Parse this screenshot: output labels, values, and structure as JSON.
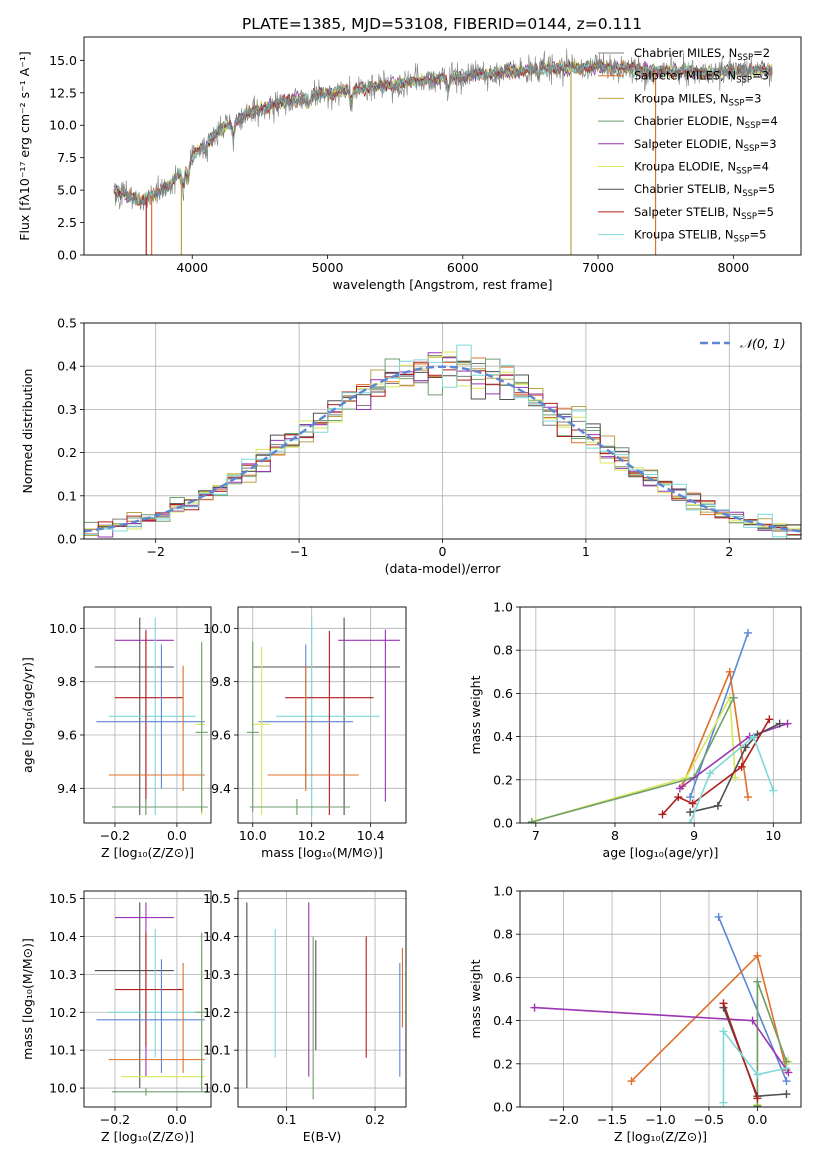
{
  "figure": {
    "title": "PLATE=1385, MJD=53108, FIBERID=0144, z=0.111"
  },
  "legend_entries": [
    {
      "label": "Chabrier MILES, N",
      "sub": "SSP",
      "suffix": "=2",
      "color": "#7f7f7f"
    },
    {
      "label": "Salpeter MILES, N",
      "sub": "SSP",
      "suffix": "=3",
      "color": "#e0702a"
    },
    {
      "label": "Kroupa MILES, N",
      "sub": "SSP",
      "suffix": "=3",
      "color": "#b8a24a"
    },
    {
      "label": "Chabrier ELODIE, N",
      "sub": "SSP",
      "suffix": "=4",
      "color": "#6f9e6f"
    },
    {
      "label": "Salpeter ELODIE, N",
      "sub": "SSP",
      "suffix": "=3",
      "color": "#9b35b4"
    },
    {
      "label": "Kroupa ELODIE, N",
      "sub": "SSP",
      "suffix": "=4",
      "color": "#d8e85a"
    },
    {
      "label": "Chabrier STELIB, N",
      "sub": "SSP",
      "suffix": "=5",
      "color": "#505050"
    },
    {
      "label": "Salpeter STELIB, N",
      "sub": "SSP",
      "suffix": "=5",
      "color": "#b01e1e"
    },
    {
      "label": "Kroupa STELIB, N",
      "sub": "SSP",
      "suffix": "=5",
      "color": "#7fd8d8"
    }
  ],
  "chart_data": [
    {
      "id": "spectrum",
      "type": "line",
      "title": "PLATE=1385, MJD=53108, FIBERID=0144, z=0.111",
      "xlabel": "wavelength [Angstrom, rest frame]",
      "ylabel": "Flux [fλ10⁻¹⁷ erg cm⁻² s⁻¹ A⁻¹]",
      "xlim": [
        3200,
        8500
      ],
      "ylim": [
        0,
        16.8
      ],
      "xticks": [
        4000,
        5000,
        6000,
        7000,
        8000
      ],
      "yticks": [
        0.0,
        2.5,
        5.0,
        7.5,
        10.0,
        12.5,
        15.0
      ],
      "grid": false,
      "legend": "top-right",
      "x_range": [
        3420,
        8290
      ],
      "continuum_anchors": {
        "x": [
          3420,
          3600,
          3800,
          4000,
          4200,
          4400,
          4600,
          4800,
          5000,
          5200,
          5400,
          5600,
          5800,
          6000,
          6200,
          6400,
          6600,
          6800,
          7000,
          7200,
          7400,
          7600,
          7800,
          8000,
          8290
        ],
        "y": [
          5.0,
          4.2,
          5.0,
          7.6,
          9.6,
          10.8,
          11.6,
          12.1,
          12.5,
          12.8,
          13.0,
          13.3,
          13.6,
          13.8,
          14.0,
          14.2,
          14.4,
          14.4,
          14.5,
          14.4,
          14.2,
          14.2,
          14.0,
          14.2,
          14.3
        ]
      },
      "absorption_features": [
        {
          "x": 3934,
          "depth": 1.4
        },
        {
          "x": 3969,
          "depth": 1.4
        },
        {
          "x": 4102,
          "depth": 0.6
        },
        {
          "x": 4304,
          "depth": 1.0
        },
        {
          "x": 4861,
          "depth": 0.6
        },
        {
          "x": 5175,
          "depth": 1.0
        },
        {
          "x": 5893,
          "depth": 0.9
        },
        {
          "x": 6563,
          "depth": 0.5
        }
      ],
      "model_dropouts": [
        {
          "x": 3660,
          "color": "#b01e1e"
        },
        {
          "x": 3700,
          "color": "#e0702a"
        },
        {
          "x": 3920,
          "color": "#b8a24a"
        },
        {
          "x": 6800,
          "color": "#b8a24a"
        },
        {
          "x": 7425,
          "color": "#e0702a"
        }
      ]
    },
    {
      "id": "residuals",
      "type": "histogram",
      "xlabel": "(data-model)/error",
      "ylabel": "Normed distribution",
      "xlim": [
        -2.5,
        2.5
      ],
      "ylim": [
        0,
        0.5
      ],
      "xticks": [
        -2,
        -1,
        0,
        1,
        2
      ],
      "yticks": [
        0.0,
        0.1,
        0.2,
        0.3,
        0.4,
        0.5
      ],
      "grid": true,
      "legend": "top-right",
      "bin_width": 0.1,
      "reference_curve": {
        "label": "𝒩(0, 1)",
        "mean": 0,
        "sigma": 1,
        "color": "#5b87d6"
      }
    },
    {
      "id": "age-vs-Z",
      "type": "errorbar",
      "xlabel": "Z [log₁₀(Z/Z⊙)]",
      "ylabel": "age  [log₁₀(age/yr)]",
      "xlim": [
        -0.3,
        0.11
      ],
      "ylim": [
        9.27,
        10.08
      ],
      "xticks": [
        -0.2,
        0.0
      ],
      "yticks": [
        9.4,
        9.6,
        9.8,
        10.0
      ],
      "grid": true,
      "points": [
        {
          "cx": -0.12,
          "cy": 9.855,
          "xlo": -0.265,
          "xhi": -0.01,
          "ylo": 9.3,
          "yhi": 10.04,
          "color": "#505050"
        },
        {
          "cx": -0.1,
          "cy": 9.955,
          "xlo": -0.2,
          "xhi": -0.01,
          "ylo": 9.35,
          "yhi": 9.995,
          "color": "#9b35b4"
        },
        {
          "cx": -0.07,
          "cy": 9.67,
          "xlo": -0.22,
          "xhi": 0.06,
          "ylo": 9.3,
          "yhi": 10.04,
          "color": "#7fd8d8"
        },
        {
          "cx": -0.1,
          "cy": 9.74,
          "xlo": -0.2,
          "xhi": 0.02,
          "ylo": 9.3,
          "yhi": 9.99,
          "color": "#b01e1e"
        },
        {
          "cx": -0.05,
          "cy": 9.65,
          "xlo": -0.26,
          "xhi": 0.09,
          "ylo": 9.4,
          "yhi": 9.94,
          "color": "#5b87d6"
        },
        {
          "cx": 0.02,
          "cy": 9.45,
          "xlo": -0.22,
          "xhi": 0.09,
          "ylo": 9.39,
          "yhi": 9.86,
          "color": "#e0702a"
        },
        {
          "cx": 0.08,
          "cy": 9.64,
          "xlo": 0.06,
          "xhi": 0.09,
          "ylo": 9.3,
          "yhi": 9.93,
          "color": "#d8e85a"
        },
        {
          "cx": 0.08,
          "cy": 9.61,
          "xlo": 0.06,
          "xhi": 0.1,
          "ylo": 9.31,
          "yhi": 9.95,
          "color": "#6f9e6f"
        },
        {
          "cx": -0.1,
          "cy": 9.33,
          "xlo": -0.21,
          "xhi": 0.1,
          "ylo": 9.3,
          "yhi": 9.36,
          "color": "#6f9e6f"
        }
      ]
    },
    {
      "id": "age-vs-mass",
      "type": "errorbar",
      "xlabel": "mass [log₁₀(M/M⊙)]",
      "ylabel": "",
      "xlim": [
        9.95,
        10.52
      ],
      "ylim": [
        9.27,
        10.08
      ],
      "xticks": [
        10.0,
        10.2,
        10.4
      ],
      "yticks": [
        9.4,
        9.6,
        9.8,
        10.0
      ],
      "grid": true,
      "points": [
        {
          "cx": 10.31,
          "cy": 9.855,
          "xlo": 10.0,
          "xhi": 10.5,
          "ylo": 9.3,
          "yhi": 10.04,
          "color": "#505050"
        },
        {
          "cx": 10.45,
          "cy": 9.955,
          "xlo": 10.29,
          "xhi": 10.5,
          "ylo": 9.35,
          "yhi": 9.995,
          "color": "#9b35b4"
        },
        {
          "cx": 10.2,
          "cy": 9.67,
          "xlo": 10.08,
          "xhi": 10.43,
          "ylo": 9.3,
          "yhi": 10.04,
          "color": "#7fd8d8"
        },
        {
          "cx": 10.26,
          "cy": 9.74,
          "xlo": 10.11,
          "xhi": 10.41,
          "ylo": 9.3,
          "yhi": 9.99,
          "color": "#b01e1e"
        },
        {
          "cx": 10.18,
          "cy": 9.65,
          "xlo": 10.02,
          "xhi": 10.34,
          "ylo": 9.4,
          "yhi": 9.94,
          "color": "#5b87d6"
        },
        {
          "cx": 10.18,
          "cy": 9.45,
          "xlo": 10.05,
          "xhi": 10.36,
          "ylo": 9.39,
          "yhi": 9.86,
          "color": "#e0702a"
        },
        {
          "cx": 10.03,
          "cy": 9.64,
          "xlo": 10.0,
          "xhi": 10.06,
          "ylo": 9.3,
          "yhi": 9.93,
          "color": "#d8e85a"
        },
        {
          "cx": 10.0,
          "cy": 9.61,
          "xlo": 9.98,
          "xhi": 10.02,
          "ylo": 9.31,
          "yhi": 9.95,
          "color": "#6f9e6f"
        },
        {
          "cx": 10.15,
          "cy": 9.33,
          "xlo": 9.99,
          "xhi": 10.33,
          "ylo": 9.3,
          "yhi": 9.36,
          "color": "#6f9e6f"
        }
      ]
    },
    {
      "id": "weight-vs-age",
      "type": "line",
      "xlabel": "age  [log₁₀(age/yr)]",
      "ylabel": "mass weight",
      "xlim": [
        6.8,
        10.35
      ],
      "ylim": [
        0,
        1.0
      ],
      "xticks": [
        7,
        8,
        9,
        10
      ],
      "yticks": [
        0.0,
        0.2,
        0.4,
        0.6,
        0.8,
        1.0
      ],
      "grid": true,
      "series": [
        {
          "color": "#5b87d6",
          "x": [
            8.95,
            9.68
          ],
          "y": [
            0.12,
            0.88
          ]
        },
        {
          "color": "#e0702a",
          "x": [
            8.85,
            9.45,
            9.68
          ],
          "y": [
            0.17,
            0.7,
            0.12
          ]
        },
        {
          "color": "#d8e85a",
          "x": [
            7.0,
            8.9,
            9.45,
            9.52
          ],
          "y": [
            0.01,
            0.21,
            0.58,
            0.21
          ]
        },
        {
          "color": "#6f9e6f",
          "x": [
            6.95,
            9.0,
            9.5
          ],
          "y": [
            0.005,
            0.21,
            0.58
          ]
        },
        {
          "color": "#9b35b4",
          "x": [
            8.82,
            9.7,
            10.18
          ],
          "y": [
            0.16,
            0.4,
            0.46
          ]
        },
        {
          "color": "#505050",
          "x": [
            8.95,
            9.3,
            9.65,
            9.8,
            10.08
          ],
          "y": [
            0.05,
            0.08,
            0.35,
            0.41,
            0.46
          ]
        },
        {
          "color": "#b01e1e",
          "x": [
            8.6,
            8.8,
            8.98,
            9.6,
            9.95
          ],
          "y": [
            0.04,
            0.12,
            0.09,
            0.26,
            0.48
          ]
        },
        {
          "color": "#7fd8d8",
          "x": [
            8.95,
            9.2,
            9.75,
            10.0
          ],
          "y": [
            0.0,
            0.23,
            0.4,
            0.15
          ]
        }
      ]
    },
    {
      "id": "mass-vs-Z",
      "type": "errorbar",
      "xlabel": "Z [log₁₀(Z/Z⊙)]",
      "ylabel": "mass [log₁₀(M/M⊙)]",
      "xlim": [
        -0.3,
        0.11
      ],
      "ylim": [
        9.95,
        10.52
      ],
      "xticks": [
        -0.2,
        0.0
      ],
      "yticks": [
        10.0,
        10.1,
        10.2,
        10.3,
        10.4,
        10.5
      ],
      "grid": true,
      "points": [
        {
          "cx": -0.12,
          "cy": 10.31,
          "xlo": -0.265,
          "xhi": -0.01,
          "ylo": 10.0,
          "yhi": 10.49,
          "color": "#505050"
        },
        {
          "cx": -0.1,
          "cy": 10.45,
          "xlo": -0.2,
          "xhi": -0.01,
          "ylo": 10.03,
          "yhi": 10.49,
          "color": "#9b35b4"
        },
        {
          "cx": -0.07,
          "cy": 10.2,
          "xlo": -0.22,
          "xhi": 0.06,
          "ylo": 10.08,
          "yhi": 10.42,
          "color": "#7fd8d8"
        },
        {
          "cx": -0.1,
          "cy": 10.26,
          "xlo": -0.2,
          "xhi": 0.02,
          "ylo": 10.11,
          "yhi": 10.41,
          "color": "#b01e1e"
        },
        {
          "cx": -0.05,
          "cy": 10.18,
          "xlo": -0.26,
          "xhi": 0.09,
          "ylo": 10.04,
          "yhi": 10.34,
          "color": "#5b87d6"
        },
        {
          "cx": 0.02,
          "cy": 10.075,
          "xlo": -0.22,
          "xhi": 0.09,
          "ylo": 10.04,
          "yhi": 10.33,
          "color": "#e0702a"
        },
        {
          "cx": 0.08,
          "cy": 10.03,
          "xlo": -0.18,
          "xhi": 0.09,
          "ylo": 10.0,
          "yhi": 10.37,
          "color": "#d8e85a"
        },
        {
          "cx": 0.08,
          "cy": 10.2,
          "xlo": 0.06,
          "xhi": 0.1,
          "ylo": 9.99,
          "yhi": 10.41,
          "color": "#6f9e6f"
        },
        {
          "cx": -0.1,
          "cy": 9.99,
          "xlo": -0.21,
          "xhi": 0.1,
          "ylo": 9.98,
          "yhi": 10.0,
          "color": "#6f9e6f"
        }
      ]
    },
    {
      "id": "mass-vs-EBV",
      "type": "errorbar",
      "xlabel": "E(B-V)",
      "ylabel": "",
      "xlim": [
        0.045,
        0.235
      ],
      "ylim": [
        9.95,
        10.52
      ],
      "xticks": [
        0.1,
        0.2
      ],
      "yticks": [
        10.0,
        10.1,
        10.2,
        10.3,
        10.4,
        10.5
      ],
      "grid": true,
      "points": [
        {
          "cx": 0.055,
          "cy": 10.25,
          "xlo": 0.055,
          "xhi": 0.055,
          "ylo": 10.0,
          "yhi": 10.49,
          "color": "#505050"
        },
        {
          "cx": 0.087,
          "cy": 10.25,
          "xlo": 0.087,
          "xhi": 0.087,
          "ylo": 10.08,
          "yhi": 10.42,
          "color": "#7fd8d8"
        },
        {
          "cx": 0.125,
          "cy": 10.3,
          "xlo": 0.125,
          "xhi": 0.125,
          "ylo": 10.03,
          "yhi": 10.49,
          "color": "#9b35b4"
        },
        {
          "cx": 0.13,
          "cy": 10.2,
          "xlo": 0.13,
          "xhi": 0.13,
          "ylo": 9.97,
          "yhi": 10.4,
          "color": "#6f9e6f"
        },
        {
          "cx": 0.133,
          "cy": 10.22,
          "xlo": 0.133,
          "xhi": 0.133,
          "ylo": 10.1,
          "yhi": 10.39,
          "color": "#505050"
        },
        {
          "cx": 0.19,
          "cy": 10.24,
          "xlo": 0.19,
          "xhi": 0.19,
          "ylo": 10.08,
          "yhi": 10.4,
          "color": "#b01e1e"
        },
        {
          "cx": 0.228,
          "cy": 10.18,
          "xlo": 0.228,
          "xhi": 0.228,
          "ylo": 10.03,
          "yhi": 10.33,
          "color": "#5b87d6"
        },
        {
          "cx": 0.231,
          "cy": 10.25,
          "xlo": 0.231,
          "xhi": 0.231,
          "ylo": 10.16,
          "yhi": 10.37,
          "color": "#e0702a"
        }
      ]
    },
    {
      "id": "weight-vs-Z",
      "type": "line",
      "xlabel": "Z [log₁₀(Z/Z⊙)]",
      "ylabel": "mass weight",
      "xlim": [
        -2.45,
        0.45
      ],
      "ylim": [
        0,
        1.0
      ],
      "xticks": [
        -2.0,
        -1.5,
        -1.0,
        -0.5,
        0.0
      ],
      "yticks": [
        0.0,
        0.2,
        0.4,
        0.6,
        0.8,
        1.0
      ],
      "grid": true,
      "series": [
        {
          "color": "#5b87d6",
          "x": [
            -0.4,
            0.3
          ],
          "y": [
            0.88,
            0.12
          ]
        },
        {
          "color": "#e0702a",
          "x": [
            -1.3,
            0.0,
            0.3
          ],
          "y": [
            0.12,
            0.7,
            0.17
          ]
        },
        {
          "color": "#d8e85a",
          "x": [
            0.0,
            0.0,
            0.3,
            0.32
          ],
          "y": [
            0.01,
            0.58,
            0.21,
            0.21
          ]
        },
        {
          "color": "#6f9e6f",
          "x": [
            0.0,
            0.0,
            0.3
          ],
          "y": [
            0.005,
            0.58,
            0.21
          ]
        },
        {
          "color": "#9b35b4",
          "x": [
            -2.3,
            -0.05,
            0.32
          ],
          "y": [
            0.46,
            0.4,
            0.16
          ]
        },
        {
          "color": "#505050",
          "x": [
            -0.35,
            0.0,
            0.3
          ],
          "y": [
            0.46,
            0.05,
            0.06
          ]
        },
        {
          "color": "#b01e1e",
          "x": [
            -0.35,
            0.0
          ],
          "y": [
            0.48,
            0.04
          ]
        },
        {
          "color": "#7fd8d8",
          "x": [
            -0.35,
            -0.35,
            0.0,
            0.3
          ],
          "y": [
            0.02,
            0.35,
            0.15,
            0.18
          ]
        }
      ]
    }
  ]
}
